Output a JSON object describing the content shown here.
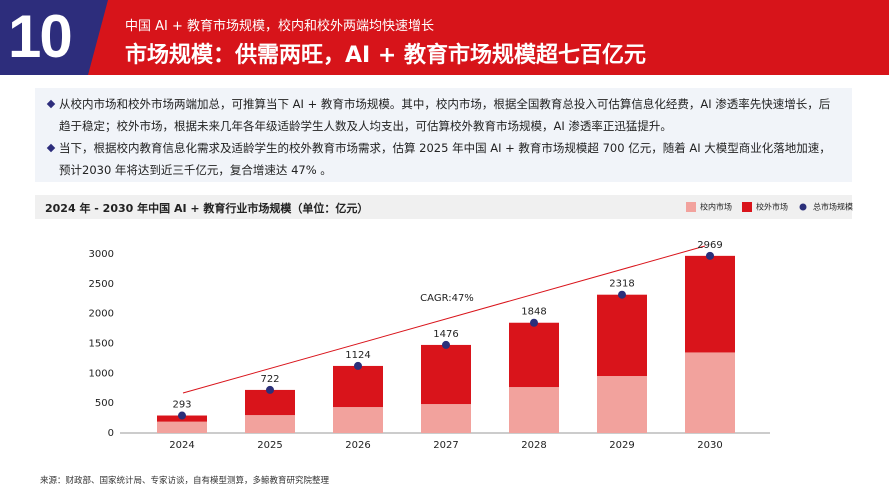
{
  "header": {
    "number": "10",
    "subtitle": "中国 AI + 教育市场规模，校内和校外两端均快速增长",
    "title": "市场规模：供需两旺，AI + 教育市场规模超七百亿元"
  },
  "bullets": [
    "从校内市场和校外市场两端加总，可推算当下 AI + 教育市场规模。其中，校内市场，根据全国教育总投入可估算信息化经费，AI 渗透率先快速增长，后趋于稳定；校外市场，根据未来几年各年级适龄学生人数及人均支出，可估算校外教育市场规模，AI 渗透率正迅猛提升。",
    "当下，根据校内教育信息化需求及适龄学生的校外教育市场需求，估算 2025 年中国 AI + 教育市场规模超 700 亿元，随着 AI 大模型商业化落地加速，预计2030 年将达到近三千亿元，复合增速达 47% 。"
  ],
  "chart_data": {
    "type": "bar",
    "stacked": true,
    "title": "2024 年 - 2030 年中国 AI + 教育行业市场规模（单位：亿元）",
    "categories": [
      "2024",
      "2025",
      "2026",
      "2027",
      "2028",
      "2029",
      "2030"
    ],
    "series": [
      {
        "name": "校内市场",
        "color": "#f2a29d",
        "values": [
          190,
          300,
          435,
          485,
          770,
          955,
          1350
        ]
      },
      {
        "name": "校外市场",
        "color": "#d9141b",
        "values": [
          103,
          422,
          689,
          991,
          1078,
          1363,
          1619
        ]
      },
      {
        "name": "总市场规模",
        "type": "scatter",
        "color": "#2b2f7a",
        "values": [
          293,
          722,
          1124,
          1476,
          1848,
          2318,
          2969
        ]
      }
    ],
    "annotation": "CAGR:47%",
    "ylim": [
      0,
      3000
    ],
    "yticks": [
      0,
      500,
      1000,
      1500,
      2000,
      2500,
      3000
    ],
    "grid": false
  },
  "source": "来源：财政部、国家统计局、专家访谈，自有模型测算，多鲸教育研究院整理"
}
